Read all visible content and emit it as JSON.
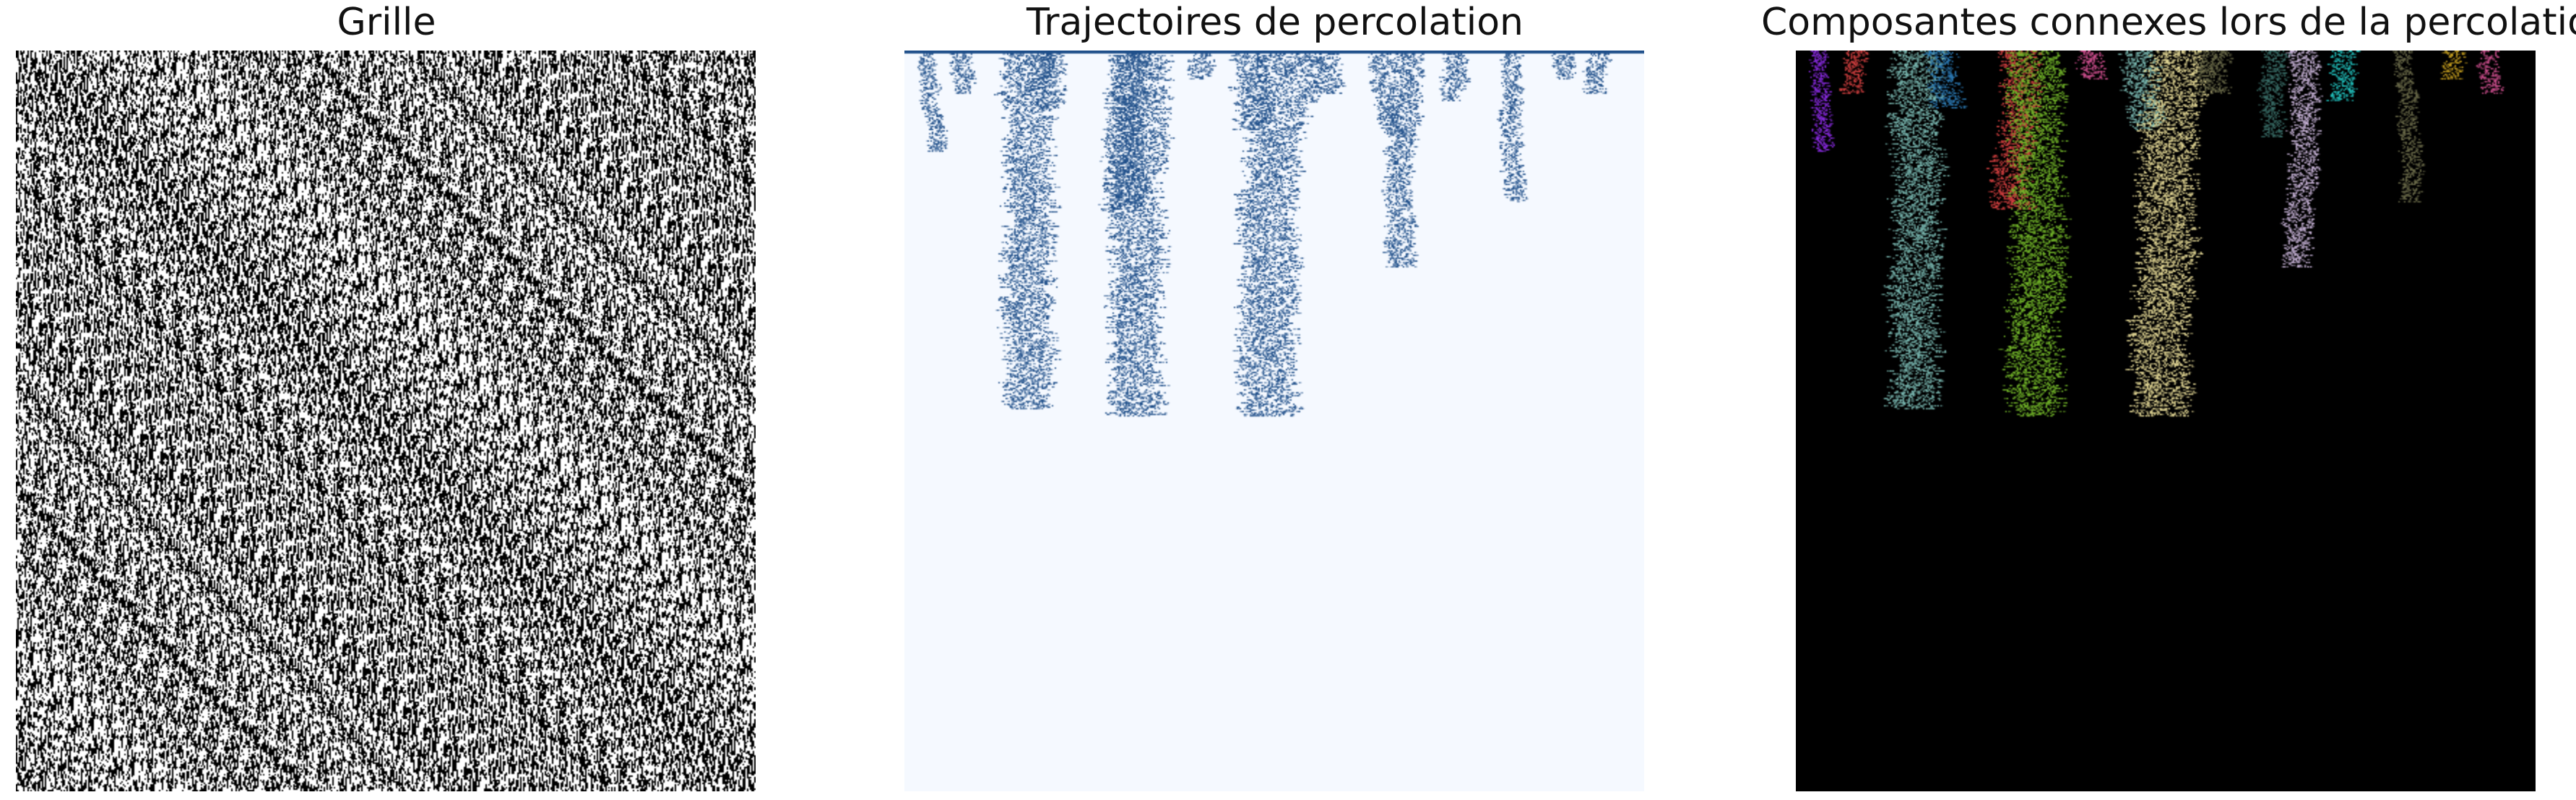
{
  "panels": [
    {
      "title": "Grille"
    },
    {
      "title": "Trajectoires de percolation"
    },
    {
      "title": "Composantes connexes lors de la percolation"
    }
  ],
  "colors": {
    "grid_open": "#ffffff",
    "grid_closed": "#000000",
    "trajectory_background": "#f5f9ff",
    "trajectory": "#1f4f8a",
    "components_background": "#000000",
    "component_palette": [
      "#7ab8b1",
      "#74b82a",
      "#e4d896",
      "#d44040",
      "#c8b4d8",
      "#3a6e68",
      "#8a2be2",
      "#d05090",
      "#2c7bb6",
      "#6b6b4a",
      "#22c4c0",
      "#c8a020"
    ]
  },
  "icons": [
    "grid-image",
    "percolation-paths-image",
    "connected-components-image"
  ]
}
